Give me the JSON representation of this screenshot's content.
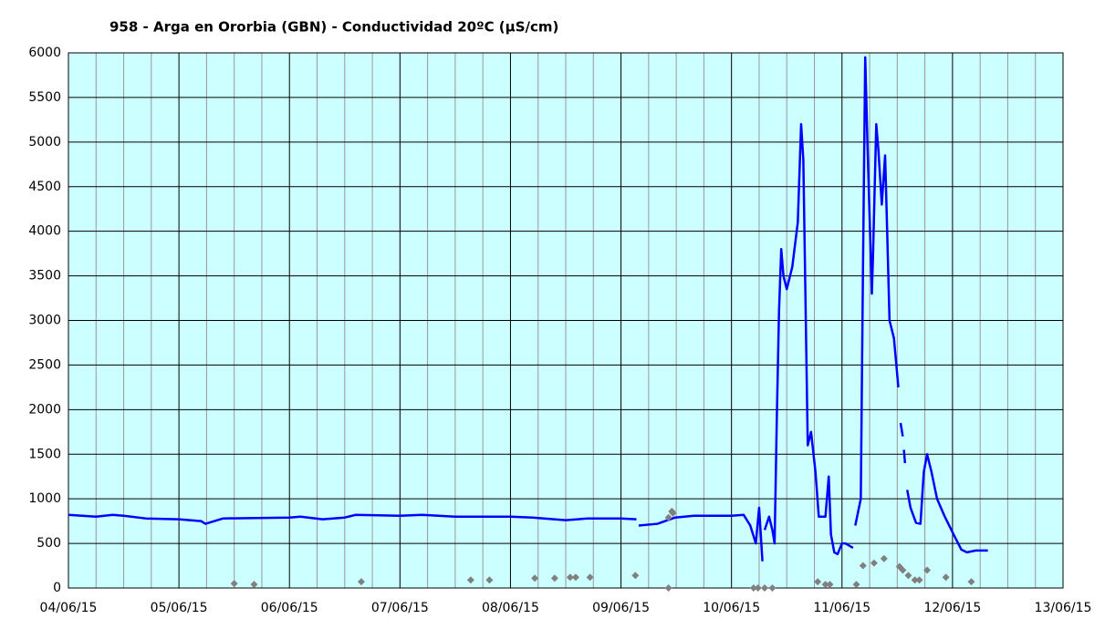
{
  "chart_data": {
    "type": "line",
    "title": "958 - Arga en Ororbia (GBN) - Conductividad 20ºC (µS/cm)",
    "xlim": [
      0,
      9
    ],
    "xticks": [
      {
        "value": 0,
        "label": "04/06/15"
      },
      {
        "value": 1,
        "label": "05/06/15"
      },
      {
        "value": 2,
        "label": "06/06/15"
      },
      {
        "value": 3,
        "label": "07/06/15"
      },
      {
        "value": 4,
        "label": "08/06/15"
      },
      {
        "value": 5,
        "label": "09/06/15"
      },
      {
        "value": 6,
        "label": "10/06/15"
      },
      {
        "value": 7,
        "label": "11/06/15"
      },
      {
        "value": 8,
        "label": "12/06/15"
      },
      {
        "value": 9,
        "label": "13/06/15"
      }
    ],
    "xminorticks": [
      0.25,
      0.5,
      0.75,
      1.25,
      1.5,
      1.75,
      2.25,
      2.5,
      2.75,
      3.25,
      3.5,
      3.75,
      4.25,
      4.5,
      4.75,
      5.25,
      5.5,
      5.75,
      6.25,
      6.5,
      6.75,
      7.25,
      7.5,
      7.75,
      8.25,
      8.5,
      8.75
    ],
    "ylim": [
      0,
      6000
    ],
    "yticks": [
      0,
      500,
      1000,
      1500,
      2000,
      2500,
      3000,
      3500,
      4000,
      4500,
      5000,
      5500,
      6000
    ],
    "grid": true,
    "series": [
      {
        "type": "line",
        "color": "#0000ff",
        "x": [
          0,
          0.25,
          0.4,
          0.5,
          0.7,
          1.0,
          1.2,
          1.24,
          1.4,
          2.0,
          2.1,
          2.3,
          2.5,
          2.6,
          3.0,
          3.2,
          3.5,
          4.0,
          4.2,
          4.5,
          4.7,
          5.0,
          5.14,
          null,
          5.16,
          5.33,
          5.49,
          5.66,
          6.0,
          6.11,
          6.17,
          6.2,
          6.22,
          6.25,
          6.28,
          null,
          6.3,
          6.34,
          6.37,
          6.39,
          6.41,
          6.43,
          6.45,
          6.47,
          6.5,
          6.55,
          6.6,
          6.63,
          6.65,
          6.69,
          6.72,
          6.76,
          6.79,
          6.85,
          6.88,
          6.9,
          6.93,
          6.96,
          7.0,
          7.03,
          7.1,
          null,
          7.12,
          7.17,
          7.19,
          7.21,
          7.23,
          7.27,
          7.28,
          7.31,
          7.33,
          7.36,
          7.39,
          7.4,
          7.43,
          7.47,
          7.51,
          null,
          7.53,
          7.55,
          null,
          7.56,
          7.57,
          null,
          7.59,
          7.62,
          7.67,
          7.71,
          7.74,
          7.77,
          7.81,
          7.86,
          7.93,
          8.01,
          8.08,
          8.13,
          8.21,
          8.32
        ],
        "values": [
          820,
          800,
          820,
          810,
          780,
          770,
          750,
          720,
          780,
          790,
          800,
          770,
          790,
          820,
          810,
          820,
          800,
          800,
          790,
          760,
          780,
          780,
          770,
          null,
          700,
          720,
          790,
          810,
          810,
          820,
          700,
          580,
          500,
          900,
          300,
          null,
          650,
          800,
          650,
          500,
          1900,
          3100,
          3800,
          3500,
          3350,
          3600,
          4100,
          5200,
          4800,
          1600,
          1750,
          1300,
          800,
          800,
          1250,
          600,
          400,
          380,
          500,
          500,
          450,
          null,
          700,
          1000,
          3600,
          5950,
          5000,
          3300,
          3700,
          5200,
          4900,
          4300,
          4850,
          4400,
          3000,
          2800,
          2250,
          null,
          1850,
          1700,
          null,
          1550,
          1400,
          null,
          1100,
          900,
          730,
          720,
          1300,
          1500,
          1300,
          1000,
          800,
          600,
          430,
          400,
          420,
          420
        ]
      },
      {
        "type": "scatter",
        "color": "#808080",
        "x": [
          1.5,
          1.68,
          2.65,
          3.64,
          3.81,
          4.22,
          4.4,
          4.54,
          4.59,
          4.72,
          5.13,
          5.43,
          5.43,
          5.46,
          5.47,
          6.2,
          6.24,
          6.3,
          6.37,
          6.78,
          6.85,
          6.89,
          7.13,
          7.19,
          7.29,
          7.38,
          7.52,
          7.55,
          7.6,
          7.66,
          7.7,
          7.77,
          7.94,
          8.17
        ],
        "values": [
          50,
          40,
          70,
          90,
          90,
          110,
          110,
          120,
          120,
          120,
          140,
          0,
          790,
          860,
          840,
          0,
          0,
          0,
          0,
          70,
          40,
          40,
          40,
          250,
          280,
          330,
          240,
          200,
          140,
          90,
          90,
          200,
          120,
          70
        ]
      }
    ]
  }
}
